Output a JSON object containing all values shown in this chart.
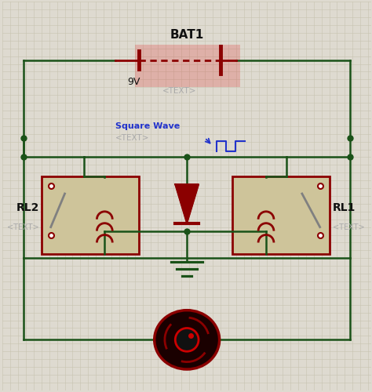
{
  "bg_color": "#dedad0",
  "grid_color": "#c8c4b0",
  "wire_color": "#1a5218",
  "component_color": "#8b0000",
  "relay_fill": "#cec49a",
  "relay_border": "#8b0000",
  "text_color_gray": "#aaaaaa",
  "text_color_black": "#111111",
  "text_color_blue": "#2233cc",
  "title": "BAT1",
  "voltage": "9V",
  "text_placeholder": "<TEXT>",
  "sq_wave_label": "Square Wave",
  "rl1_label": "RL1",
  "rl2_label": "RL2",
  "figw": 4.74,
  "figh": 5.0,
  "dpi": 100
}
